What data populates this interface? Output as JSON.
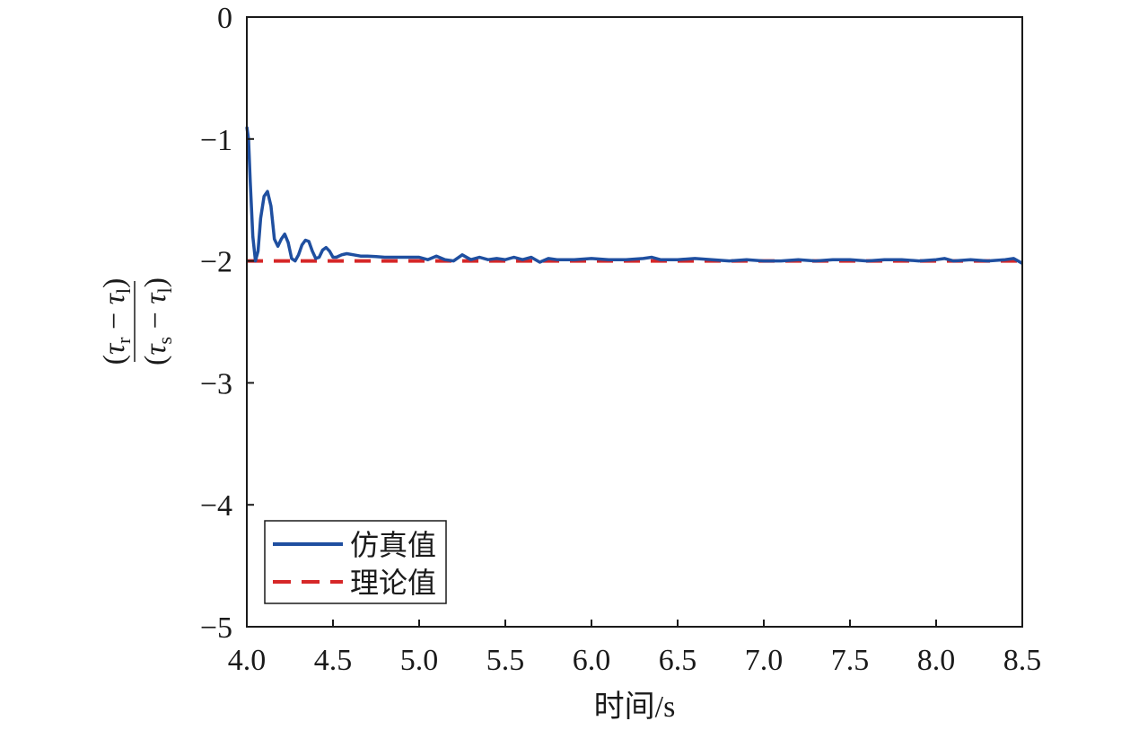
{
  "chart_data": {
    "type": "line",
    "title": "",
    "xlabel": "时间/s",
    "ylabel": {
      "numerator": "(τ_r − τ_l)",
      "denominator": "(τ_s − τ_l)",
      "num_parts": [
        "(",
        "τ",
        "r",
        " − ",
        "τ",
        "l",
        ")"
      ],
      "den_parts": [
        "(",
        "τ",
        "s",
        " − ",
        "τ",
        "l",
        ")"
      ]
    },
    "xlim": [
      4.0,
      8.5
    ],
    "ylim": [
      -5,
      0
    ],
    "xticks": [
      4.0,
      4.5,
      5.0,
      5.5,
      6.0,
      6.5,
      7.0,
      7.5,
      8.0,
      8.5
    ],
    "xtick_labels": [
      "4.0",
      "4.5",
      "5.0",
      "5.5",
      "6.0",
      "6.5",
      "7.0",
      "7.5",
      "8.0",
      "8.5"
    ],
    "yticks": [
      0,
      -1,
      -2,
      -3,
      -4,
      -5
    ],
    "ytick_labels": [
      "0",
      "−1",
      "−2",
      "−3",
      "−4",
      "−5"
    ],
    "grid": false,
    "legend_position": "bottom-left",
    "series": [
      {
        "name": "仿真值",
        "color": "#1f4fa0",
        "style": "solid",
        "x": [
          4.0,
          4.01,
          4.02,
          4.035,
          4.05,
          4.065,
          4.08,
          4.1,
          4.12,
          4.14,
          4.16,
          4.18,
          4.2,
          4.22,
          4.24,
          4.26,
          4.28,
          4.3,
          4.32,
          4.34,
          4.36,
          4.38,
          4.4,
          4.42,
          4.44,
          4.46,
          4.48,
          4.5,
          4.52,
          4.55,
          4.58,
          4.62,
          4.66,
          4.7,
          4.75,
          4.8,
          4.9,
          5.0,
          5.05,
          5.1,
          5.15,
          5.2,
          5.25,
          5.3,
          5.35,
          5.4,
          5.45,
          5.5,
          5.55,
          5.6,
          5.65,
          5.7,
          5.75,
          5.8,
          5.9,
          6.0,
          6.1,
          6.2,
          6.3,
          6.35,
          6.4,
          6.5,
          6.6,
          6.7,
          6.8,
          6.9,
          7.0,
          7.1,
          7.2,
          7.3,
          7.4,
          7.5,
          7.6,
          7.7,
          7.8,
          7.9,
          8.0,
          8.05,
          8.1,
          8.2,
          8.3,
          8.4,
          8.45,
          8.5
        ],
        "values": [
          -0.9,
          -1.0,
          -1.35,
          -1.8,
          -2.0,
          -1.92,
          -1.65,
          -1.47,
          -1.43,
          -1.55,
          -1.82,
          -1.88,
          -1.82,
          -1.78,
          -1.85,
          -1.98,
          -2.0,
          -1.95,
          -1.87,
          -1.83,
          -1.84,
          -1.92,
          -1.98,
          -1.97,
          -1.91,
          -1.89,
          -1.92,
          -1.97,
          -1.97,
          -1.95,
          -1.94,
          -1.95,
          -1.96,
          -1.96,
          -1.965,
          -1.97,
          -1.97,
          -1.97,
          -1.99,
          -1.96,
          -1.99,
          -2.0,
          -1.95,
          -1.99,
          -1.97,
          -1.99,
          -1.98,
          -1.99,
          -1.97,
          -1.99,
          -1.97,
          -2.01,
          -1.98,
          -1.99,
          -1.99,
          -1.98,
          -1.99,
          -1.99,
          -1.98,
          -1.97,
          -1.99,
          -1.99,
          -1.98,
          -1.99,
          -2.0,
          -1.99,
          -2.0,
          -2.0,
          -1.99,
          -2.0,
          -1.99,
          -1.99,
          -2.0,
          -1.99,
          -1.99,
          -2.0,
          -1.99,
          -1.98,
          -2.0,
          -1.99,
          -2.0,
          -1.99,
          -1.98,
          -2.02
        ]
      },
      {
        "name": "理论值",
        "color": "#d62728",
        "style": "dashed",
        "x": [
          4.0,
          8.5
        ],
        "values": [
          -2.0,
          -2.0
        ]
      }
    ]
  }
}
